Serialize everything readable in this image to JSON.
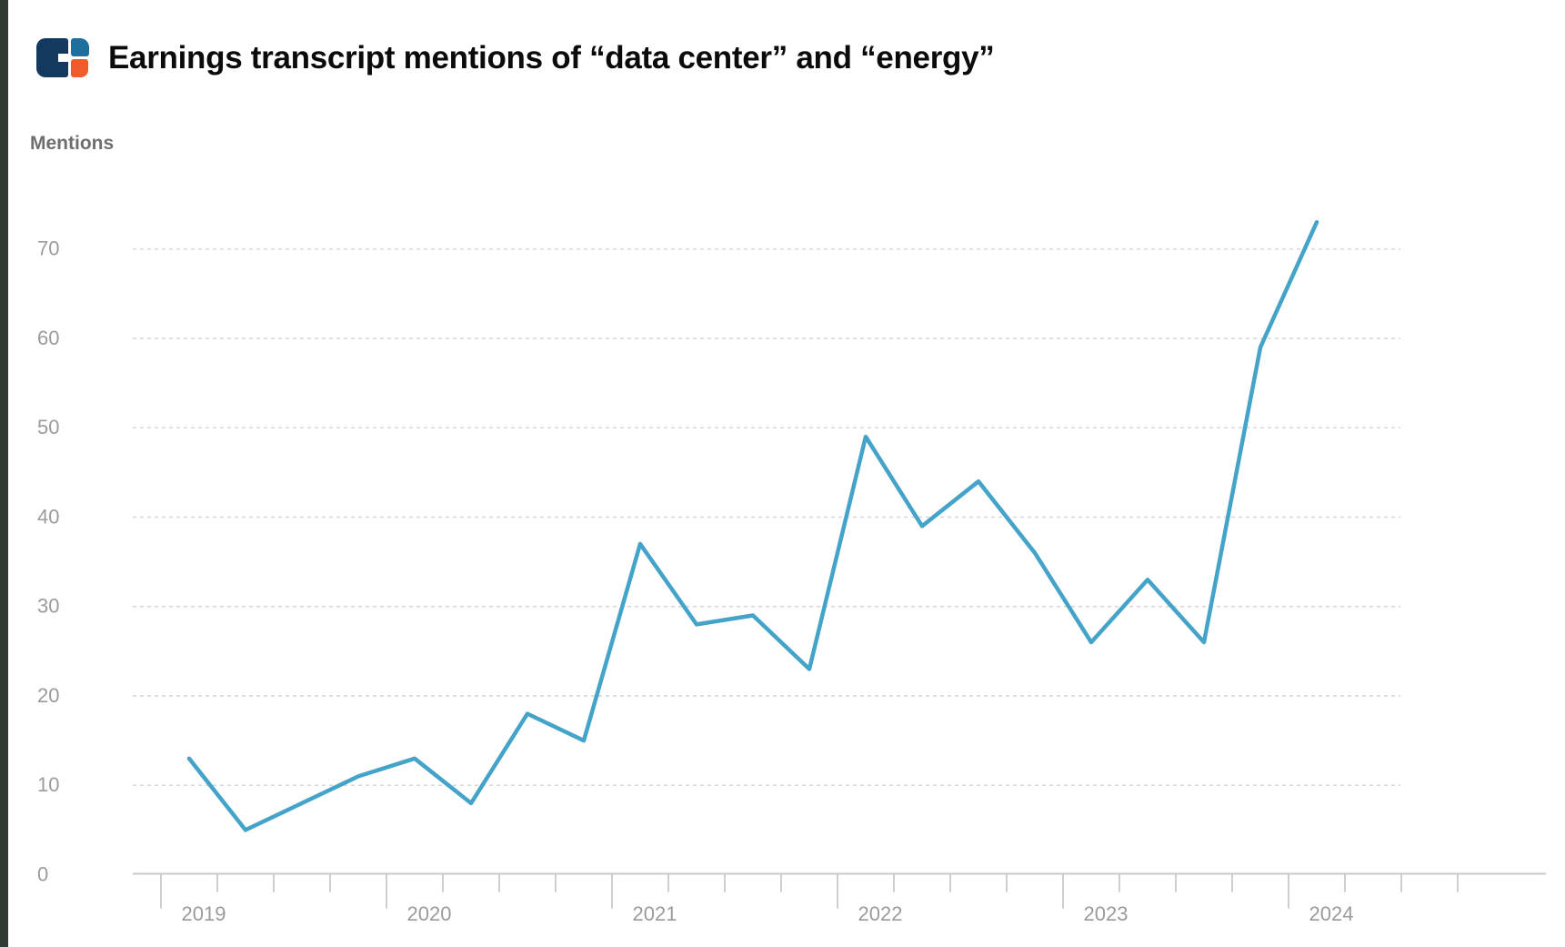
{
  "page": {
    "left_bar_color": "#303a33",
    "background": "#ffffff"
  },
  "header": {
    "title": "Earnings transcript mentions of “data center” and “energy”",
    "title_color": "#0b0b0b",
    "logo_name": "cbinsights-logo",
    "logo_colors": {
      "navy": "#14395f",
      "blue": "#1d6f9d",
      "orange": "#f15b2c"
    }
  },
  "chart_data": {
    "type": "line",
    "title": "Earnings transcript mentions of “data center” and “energy”",
    "ylabel": "Mentions",
    "xlabel": "",
    "categories": [
      "2019 Q1",
      "2019 Q2",
      "2019 Q3",
      "2019 Q4",
      "2020 Q1",
      "2020 Q2",
      "2020 Q3",
      "2020 Q4",
      "2021 Q1",
      "2021 Q2",
      "2021 Q3",
      "2021 Q4",
      "2022 Q1",
      "2022 Q2",
      "2022 Q3",
      "2022 Q4",
      "2023 Q1",
      "2023 Q2",
      "2023 Q3",
      "2023 Q4",
      "2024 Q1"
    ],
    "series": [
      {
        "name": "Mentions",
        "color": "#44a3c8",
        "values": [
          13,
          5,
          8,
          11,
          13,
          8,
          18,
          15,
          37,
          28,
          29,
          23,
          49,
          39,
          44,
          36,
          26,
          33,
          26,
          59,
          73
        ]
      }
    ],
    "x_axis": {
      "year_labels": [
        "2019",
        "2020",
        "2021",
        "2022",
        "2023",
        "2024"
      ],
      "quarter_ticks_total": 24,
      "label_color": "#9b9b9b"
    },
    "y_axis": {
      "ticks": [
        0,
        10,
        20,
        30,
        40,
        50,
        60,
        70
      ],
      "ylim": [
        0,
        75
      ],
      "label_color": "#9b9b9b",
      "title_color": "#6e6e6e"
    },
    "grid": {
      "on": true,
      "style": "dashed",
      "color": "#d9d9d9"
    },
    "axis_line_color": "#c8c8c8",
    "legend": "none"
  }
}
